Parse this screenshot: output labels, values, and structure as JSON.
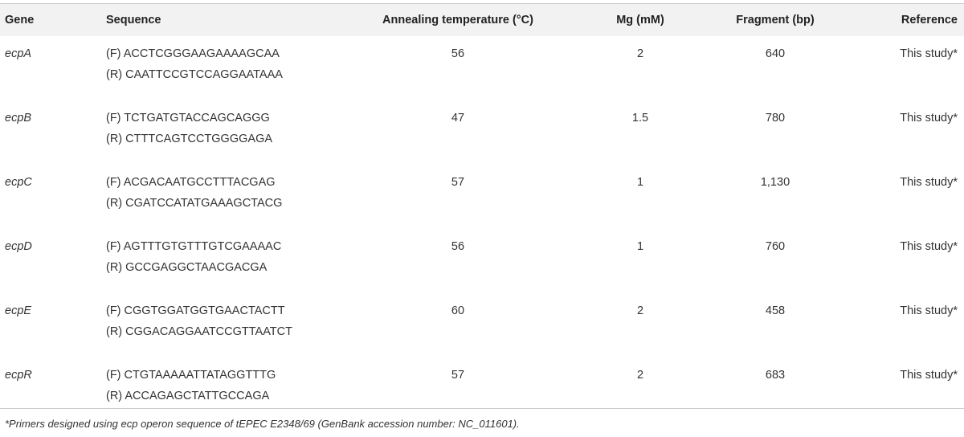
{
  "table": {
    "header": [
      "Gene",
      "Sequence",
      "Annealing temperature (°C)",
      "Mg (mM)",
      "Fragment (bp)",
      "Reference"
    ],
    "rows": [
      {
        "gene": "ecpA",
        "sequence": [
          "(F) ACCTCGGGAAGAAAAGCAA",
          "(R) CAATTCCGTCCAGGAATAAA"
        ],
        "temperature": "56",
        "mg": "2",
        "fragment": "640",
        "reference": "This study*"
      },
      {
        "gene": "ecpB",
        "sequence": [
          "(F) TCTGATGTACCAGCAGGG",
          "(R) CTTTCAGTCCTGGGGAGA"
        ],
        "temperature": "47",
        "mg": "1.5",
        "fragment": "780",
        "reference": "This study*"
      },
      {
        "gene": "ecpC",
        "sequence": [
          "(F) ACGACAATGCCTTTACGAG",
          "(R) CGATCCATATGAAAGCTACG"
        ],
        "temperature": "57",
        "mg": "1",
        "fragment": "1,130",
        "reference": "This study*"
      },
      {
        "gene": "ecpD",
        "sequence": [
          "(F) AGTTTGTGTTTGTCGAAAAC",
          "(R) GCCGAGGCTAACGACGA"
        ],
        "temperature": "56",
        "mg": "1",
        "fragment": "760",
        "reference": "This study*"
      },
      {
        "gene": "ecpE",
        "sequence": [
          "(F) CGGTGGATGGTGAACTACTT",
          "(R) CGGACAGGAATCCGTTAATCT"
        ],
        "temperature": "60",
        "mg": "2",
        "fragment": "458",
        "reference": "This study*"
      },
      {
        "gene": "ecpR",
        "sequence": [
          "(F) CTGTAAAAATTATAGGTTTG",
          "(R) ACCAGAGCTATTGCCAGA"
        ],
        "temperature": "57",
        "mg": "2",
        "fragment": "683",
        "reference": "This study*"
      }
    ],
    "footnote": "*Primers designed using ecp operon sequence of tEPEC E2348/69 (GenBank accession number: NC_011601)."
  }
}
